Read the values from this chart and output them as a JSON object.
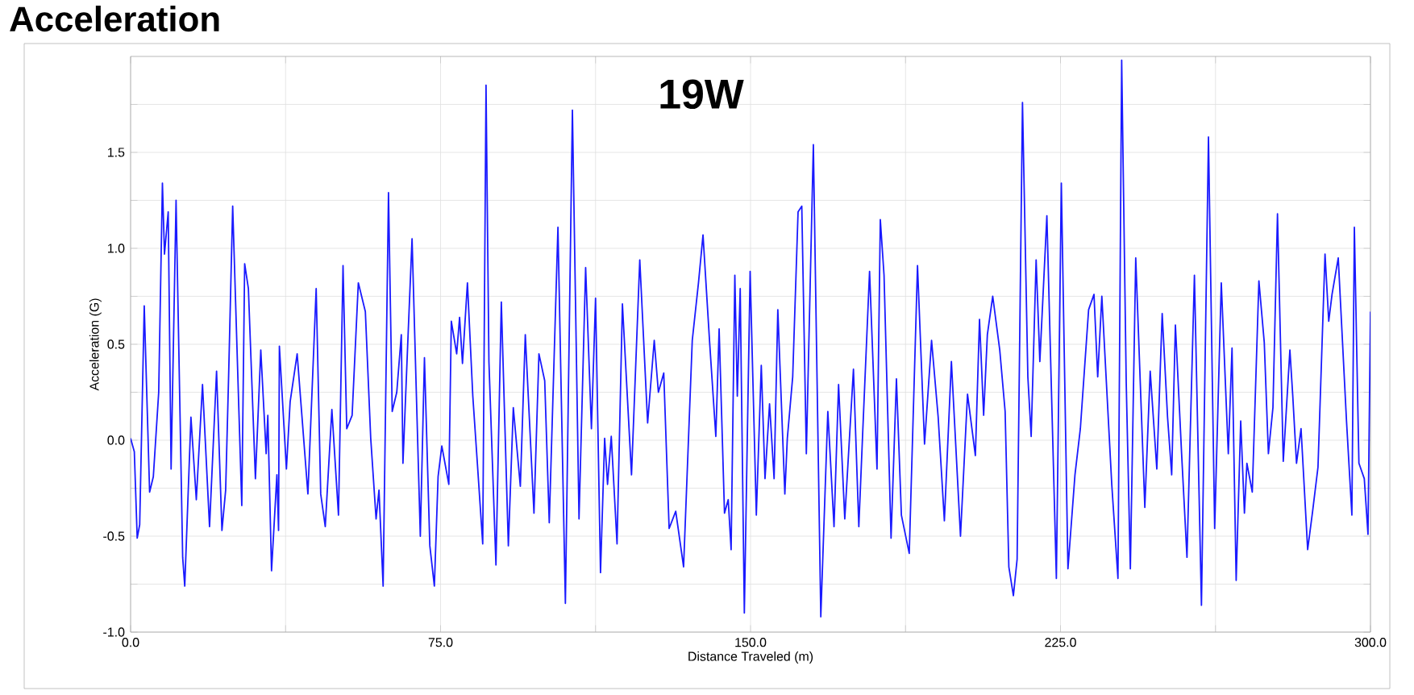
{
  "chart_data": {
    "type": "line",
    "title": "Acceleration",
    "xlabel": "Distance Traveled (m)",
    "ylabel": "Acceleration (G)",
    "annotations": [
      "19W"
    ],
    "x": [
      0,
      0.9,
      1.6,
      2.2,
      3.3,
      4.6,
      5.5,
      6.8,
      7.7,
      8.2,
      9.1,
      9.8,
      11.0,
      12.6,
      13.1,
      14.6,
      15.9,
      17.4,
      19.1,
      20.8,
      22.1,
      23.0,
      23.7,
      24.7,
      26.9,
      27.6,
      28.5,
      30.2,
      31.5,
      32.8,
      33.2,
      34.1,
      35.4,
      35.8,
      36.0,
      37.7,
      38.6,
      40.3,
      42.9,
      44.9,
      46.0,
      47.1,
      48.7,
      50.3,
      51.4,
      52.3,
      53.6,
      55.1,
      56.8,
      58.1,
      59.4,
      60.1,
      61.1,
      62.4,
      63.3,
      64.4,
      65.5,
      65.9,
      67.2,
      68.1,
      70.1,
      71.1,
      72.4,
      73.5,
      74.4,
      75.3,
      77.0,
      77.6,
      78.9,
      79.6,
      80.3,
      81.5,
      82.8,
      83.9,
      85.2,
      86.0,
      86.7,
      88.4,
      89.7,
      91.4,
      92.6,
      94.3,
      95.5,
      97.6,
      98.8,
      100.2,
      101.3,
      103.4,
      105.2,
      106.9,
      108.5,
      110.1,
      111.5,
      112.5,
      113.7,
      114.7,
      115.4,
      116.3,
      117.7,
      119.0,
      121.2,
      123.2,
      125.1,
      126.7,
      127.7,
      129.0,
      130.3,
      131.9,
      133.8,
      135.9,
      137.4,
      138.5,
      140.1,
      141.6,
      142.4,
      143.7,
      144.6,
      145.3,
      146.2,
      146.8,
      147.5,
      148.5,
      149.9,
      151.4,
      152.6,
      153.5,
      154.6,
      155.7,
      156.6,
      158.3,
      158.9,
      160.2,
      161.5,
      162.4,
      163.5,
      165.2,
      167.0,
      168.7,
      170.2,
      171.3,
      172.8,
      174.9,
      176.2,
      177.1,
      178.8,
      180.6,
      181.4,
      182.3,
      184.0,
      185.3,
      186.5,
      188.4,
      190.4,
      192.1,
      193.8,
      195.4,
      196.9,
      198.6,
      200.8,
      202.5,
      204.4,
      205.4,
      206.4,
      207.3,
      208.6,
      210.3,
      211.6,
      212.5,
      213.6,
      214.5,
      215.8,
      217.1,
      217.9,
      219.1,
      220.0,
      221.7,
      224.0,
      225.2,
      226.8,
      228.5,
      229.8,
      231.8,
      233.1,
      234.0,
      235.0,
      237.4,
      238.9,
      239.8,
      240.9,
      241.9,
      243.2,
      245.4,
      246.7,
      248.3,
      249.6,
      250.9,
      251.9,
      252.8,
      254.3,
      255.6,
      257.4,
      259.1,
      260.8,
      262.3,
      263.9,
      265.6,
      266.5,
      267.5,
      268.6,
      269.5,
      270.1,
      271.4,
      273.0,
      274.3,
      275.3,
      276.4,
      277.5,
      278.9,
      280.5,
      281.2,
      282.1,
      283.2,
      284.8,
      286.0,
      287.3,
      289.0,
      289.9,
      290.7,
      292.2,
      294.2,
      295.5,
      296.1,
      297.2,
      298.5,
      299.4,
      300.0
    ],
    "series": [
      {
        "color": "#1a1aff",
        "values": [
          0.01,
          -0.06,
          -0.51,
          -0.44,
          0.7,
          -0.27,
          -0.19,
          0.25,
          1.34,
          0.97,
          1.19,
          -0.15,
          1.25,
          -0.61,
          -0.76,
          0.12,
          -0.31,
          0.29,
          -0.45,
          0.36,
          -0.47,
          -0.26,
          0.32,
          1.22,
          -0.34,
          0.92,
          0.79,
          -0.2,
          0.47,
          -0.07,
          0.13,
          -0.68,
          -0.18,
          -0.47,
          0.49,
          -0.15,
          0.2,
          0.45,
          -0.28,
          0.79,
          -0.28,
          -0.45,
          0.16,
          -0.39,
          0.91,
          0.06,
          0.13,
          0.82,
          0.67,
          0.01,
          -0.41,
          -0.26,
          -0.76,
          1.29,
          0.15,
          0.25,
          0.55,
          -0.12,
          0.58,
          1.05,
          -0.5,
          0.43,
          -0.55,
          -0.76,
          -0.19,
          -0.03,
          -0.23,
          0.62,
          0.45,
          0.64,
          0.4,
          0.82,
          0.23,
          -0.12,
          -0.54,
          1.85,
          0.41,
          -0.65,
          0.72,
          -0.55,
          0.17,
          -0.24,
          0.55,
          -0.38,
          0.45,
          0.31,
          -0.43,
          1.11,
          -0.85,
          1.72,
          -0.41,
          0.9,
          0.06,
          0.74,
          -0.69,
          0.01,
          -0.23,
          0.02,
          -0.54,
          0.71,
          -0.18,
          0.94,
          0.09,
          0.52,
          0.25,
          0.35,
          -0.46,
          -0.37,
          -0.66,
          0.52,
          0.82,
          1.07,
          0.51,
          0.02,
          0.58,
          -0.38,
          -0.31,
          -0.57,
          0.86,
          0.23,
          0.79,
          -0.9,
          0.88,
          -0.39,
          0.39,
          -0.2,
          0.19,
          -0.2,
          0.68,
          -0.28,
          0.01,
          0.33,
          1.19,
          1.22,
          -0.07,
          1.54,
          -0.92,
          0.15,
          -0.45,
          0.29,
          -0.41,
          0.37,
          -0.45,
          0.02,
          0.88,
          -0.15,
          1.15,
          0.86,
          -0.51,
          0.32,
          -0.39,
          -0.59,
          0.91,
          -0.02,
          0.52,
          0.12,
          -0.42,
          0.41,
          -0.5,
          0.24,
          -0.08,
          0.63,
          0.13,
          0.55,
          0.75,
          0.47,
          0.15,
          -0.66,
          -0.81,
          -0.62,
          1.76,
          0.33,
          0.02,
          0.94,
          0.41,
          1.17,
          -0.72,
          1.34,
          -0.67,
          -0.18,
          0.06,
          0.68,
          0.76,
          0.33,
          0.75,
          -0.23,
          -0.72,
          1.98,
          0.3,
          -0.67,
          0.95,
          -0.35,
          0.36,
          -0.15,
          0.66,
          0.12,
          -0.18,
          0.6,
          -0.07,
          -0.61,
          0.86,
          -0.86,
          1.58,
          -0.46,
          0.82,
          -0.07,
          0.48,
          -0.73,
          0.1,
          -0.38,
          -0.12,
          -0.27,
          0.83,
          0.51,
          -0.07,
          0.17,
          1.18,
          -0.11,
          0.47,
          0.23,
          -0.12,
          0.06,
          -0.57,
          -0.37,
          -0.14,
          0.97,
          0.62,
          0.76,
          0.95,
          0.1,
          -0.39,
          1.11,
          -0.12,
          -0.2,
          -0.49,
          0.67
        ]
      }
    ],
    "xlim": [
      0,
      300
    ],
    "ylim": [
      -1,
      2
    ],
    "xticks": [
      {
        "value": 0,
        "label": "0.0"
      },
      {
        "value": 37.5,
        "label": null
      },
      {
        "value": 75,
        "label": "75.0"
      },
      {
        "value": 112.5,
        "label": null
      },
      {
        "value": 150,
        "label": "150.0"
      },
      {
        "value": 187.5,
        "label": null
      },
      {
        "value": 225,
        "label": "225.0"
      },
      {
        "value": 262.5,
        "label": null
      },
      {
        "value": 300,
        "label": "300.0"
      }
    ],
    "yticks": [
      {
        "value": -1,
        "label": "-1.0"
      },
      {
        "value": -0.75,
        "label": null
      },
      {
        "value": -0.5,
        "label": "-0.5"
      },
      {
        "value": -0.25,
        "label": null
      },
      {
        "value": 0,
        "label": "0.0"
      },
      {
        "value": 0.25,
        "label": null
      },
      {
        "value": 0.5,
        "label": "0.5"
      },
      {
        "value": 0.75,
        "label": null
      },
      {
        "value": 1,
        "label": "1.0"
      },
      {
        "value": 1.25,
        "label": null
      },
      {
        "value": 1.5,
        "label": "1.5"
      },
      {
        "value": 1.75,
        "label": null
      }
    ],
    "grid": true,
    "marker": "none",
    "line_style": "solid"
  }
}
